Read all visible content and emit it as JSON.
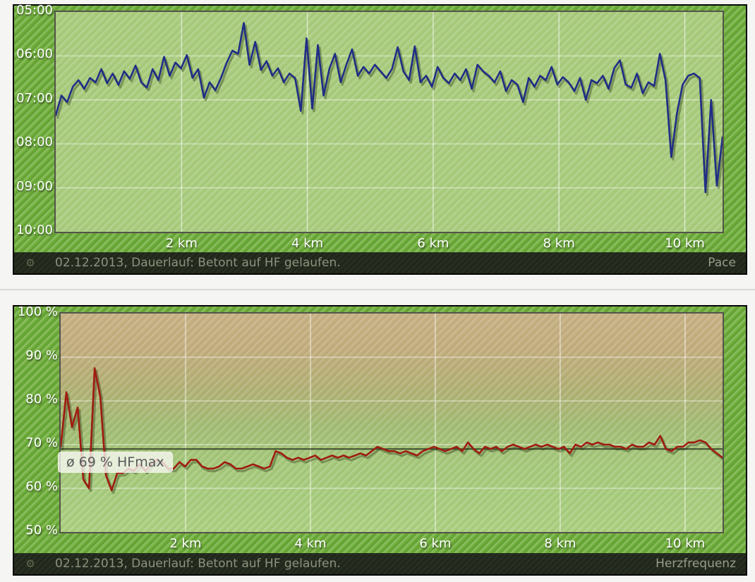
{
  "icons": {
    "gear": "⚙"
  },
  "colors": {
    "page_background": "#f5f5f4",
    "widget_green": "#6fae3a",
    "plot_green": "#a9cc7e",
    "pace_line": "#1f2d86",
    "heartrate_line": "#9e1b10",
    "caption_bar": "#20271a",
    "caption_text": "#8d927f",
    "hf_zone_top_tan": "#c7b184",
    "hf_zone_bottom_green": "#abd081",
    "divider": "#d9d9d9",
    "gridline": "rgba(255,255,255,0.5)"
  },
  "chart_data": [
    {
      "type": "line",
      "name": "Pace",
      "caption": "02.12.2013, Dauerlauf: Betont auf HF gelaufen.",
      "right_label": "Pace",
      "legend_position": "caption-bar-right",
      "grid": true,
      "x": {
        "unit": "km",
        "min": 0,
        "max": 10.6,
        "tick_values": [
          2,
          4,
          6,
          8,
          10
        ],
        "tick_labels": [
          "2 km",
          "4 km",
          "6 km",
          "8 km",
          "10 km"
        ]
      },
      "y": {
        "unit": "min/km",
        "min": 5,
        "max": 10,
        "direction": "down",
        "tick_values": [
          5,
          6,
          7,
          8,
          9,
          10
        ],
        "tick_labels": [
          "05:00",
          "06:00",
          "07:00",
          "08:00",
          "09:00",
          "10:00"
        ],
        "gridline_values": [
          6,
          7,
          8,
          9
        ]
      },
      "series": [
        {
          "name": "Pace",
          "unit": "min/km (decimal minutes, sampled uniformly 0–10.6 km)",
          "color": "#1f2d86",
          "values": [
            7.35,
            6.9,
            7.05,
            6.7,
            6.55,
            6.75,
            6.5,
            6.6,
            6.3,
            6.62,
            6.4,
            6.66,
            6.35,
            6.52,
            6.22,
            6.6,
            6.72,
            6.3,
            6.55,
            6.02,
            6.45,
            6.15,
            6.28,
            5.98,
            6.5,
            6.3,
            6.95,
            6.6,
            6.78,
            6.5,
            6.15,
            5.88,
            5.95,
            5.25,
            6.2,
            5.68,
            6.32,
            6.12,
            6.45,
            6.28,
            6.6,
            6.4,
            6.5,
            7.25,
            5.6,
            7.2,
            5.75,
            6.9,
            6.3,
            5.95,
            6.6,
            6.2,
            5.85,
            6.45,
            6.25,
            6.4,
            6.2,
            6.35,
            6.5,
            6.3,
            5.8,
            6.35,
            6.55,
            5.78,
            6.6,
            6.45,
            6.7,
            6.25,
            6.5,
            6.62,
            6.4,
            6.55,
            6.3,
            6.75,
            6.2,
            6.35,
            6.45,
            6.6,
            6.35,
            6.8,
            6.55,
            6.65,
            7.05,
            6.5,
            6.7,
            6.45,
            6.55,
            6.25,
            6.65,
            6.48,
            6.6,
            6.8,
            6.5,
            7.0,
            6.55,
            6.62,
            6.45,
            6.75,
            6.28,
            6.1,
            6.65,
            6.72,
            6.4,
            6.85,
            6.6,
            6.68,
            5.95,
            6.55,
            8.3,
            7.3,
            6.65,
            6.45,
            6.4,
            6.5,
            9.1,
            7.0,
            8.95,
            7.85
          ]
        }
      ]
    },
    {
      "type": "line",
      "name": "Herzfrequenz",
      "caption": "02.12.2013, Dauerlauf: Betont auf HF gelaufen.",
      "right_label": "Herzfrequenz",
      "legend_position": "caption-bar-right",
      "grid": true,
      "x": {
        "unit": "km",
        "min": 0,
        "max": 10.6,
        "tick_values": [
          2,
          4,
          6,
          8,
          10
        ],
        "tick_labels": [
          "2 km",
          "4 km",
          "6 km",
          "8 km",
          "10 km"
        ]
      },
      "y": {
        "unit": "% HFmax",
        "min": 50,
        "max": 100,
        "direction": "up",
        "tick_values": [
          100,
          90,
          80,
          70,
          60,
          50
        ],
        "tick_labels": [
          "100 %",
          "90 %",
          "80 %",
          "70 %",
          "60 %",
          "50 %"
        ],
        "gridline_values": [
          90,
          80,
          70,
          60
        ]
      },
      "average": {
        "value": 69,
        "label": "ø 69 % HFmax"
      },
      "series": [
        {
          "name": "Herzfrequenz",
          "unit": "% HFmax (sampled uniformly 0–10.6 km)",
          "color": "#9e1b10",
          "values": [
            69.5,
            82,
            74,
            78.5,
            62,
            60,
            87.5,
            81,
            63,
            59.5,
            63.5,
            63.5,
            64.5,
            64,
            65.5,
            64,
            65.5,
            66.5,
            66,
            64.5,
            64.5,
            66,
            65,
            66.5,
            66.5,
            65,
            64.5,
            64.5,
            65,
            66,
            65.5,
            64.5,
            64.5,
            65,
            65.5,
            65,
            64.5,
            65,
            68.5,
            68,
            67,
            66.5,
            67,
            66.5,
            67,
            67.5,
            66.5,
            67,
            67.5,
            67,
            67.5,
            67,
            67.5,
            68,
            67.5,
            68.5,
            69.5,
            69,
            68.5,
            68.5,
            68,
            68.5,
            68,
            67.5,
            68.5,
            69,
            69.5,
            69,
            68.5,
            69,
            69.5,
            68.5,
            70.5,
            69,
            68,
            69.5,
            69,
            69.5,
            68.5,
            69.5,
            70,
            69.5,
            69,
            69.5,
            70,
            69.5,
            70,
            69.5,
            69,
            69.5,
            68,
            70,
            69.5,
            70.5,
            70,
            70.5,
            70,
            70,
            69.5,
            69.5,
            69,
            70,
            69.5,
            69.5,
            70.5,
            70,
            72,
            69,
            68.5,
            69.5,
            69.5,
            70.5,
            70.5,
            71,
            70.5,
            69,
            68,
            67
          ]
        }
      ]
    }
  ]
}
